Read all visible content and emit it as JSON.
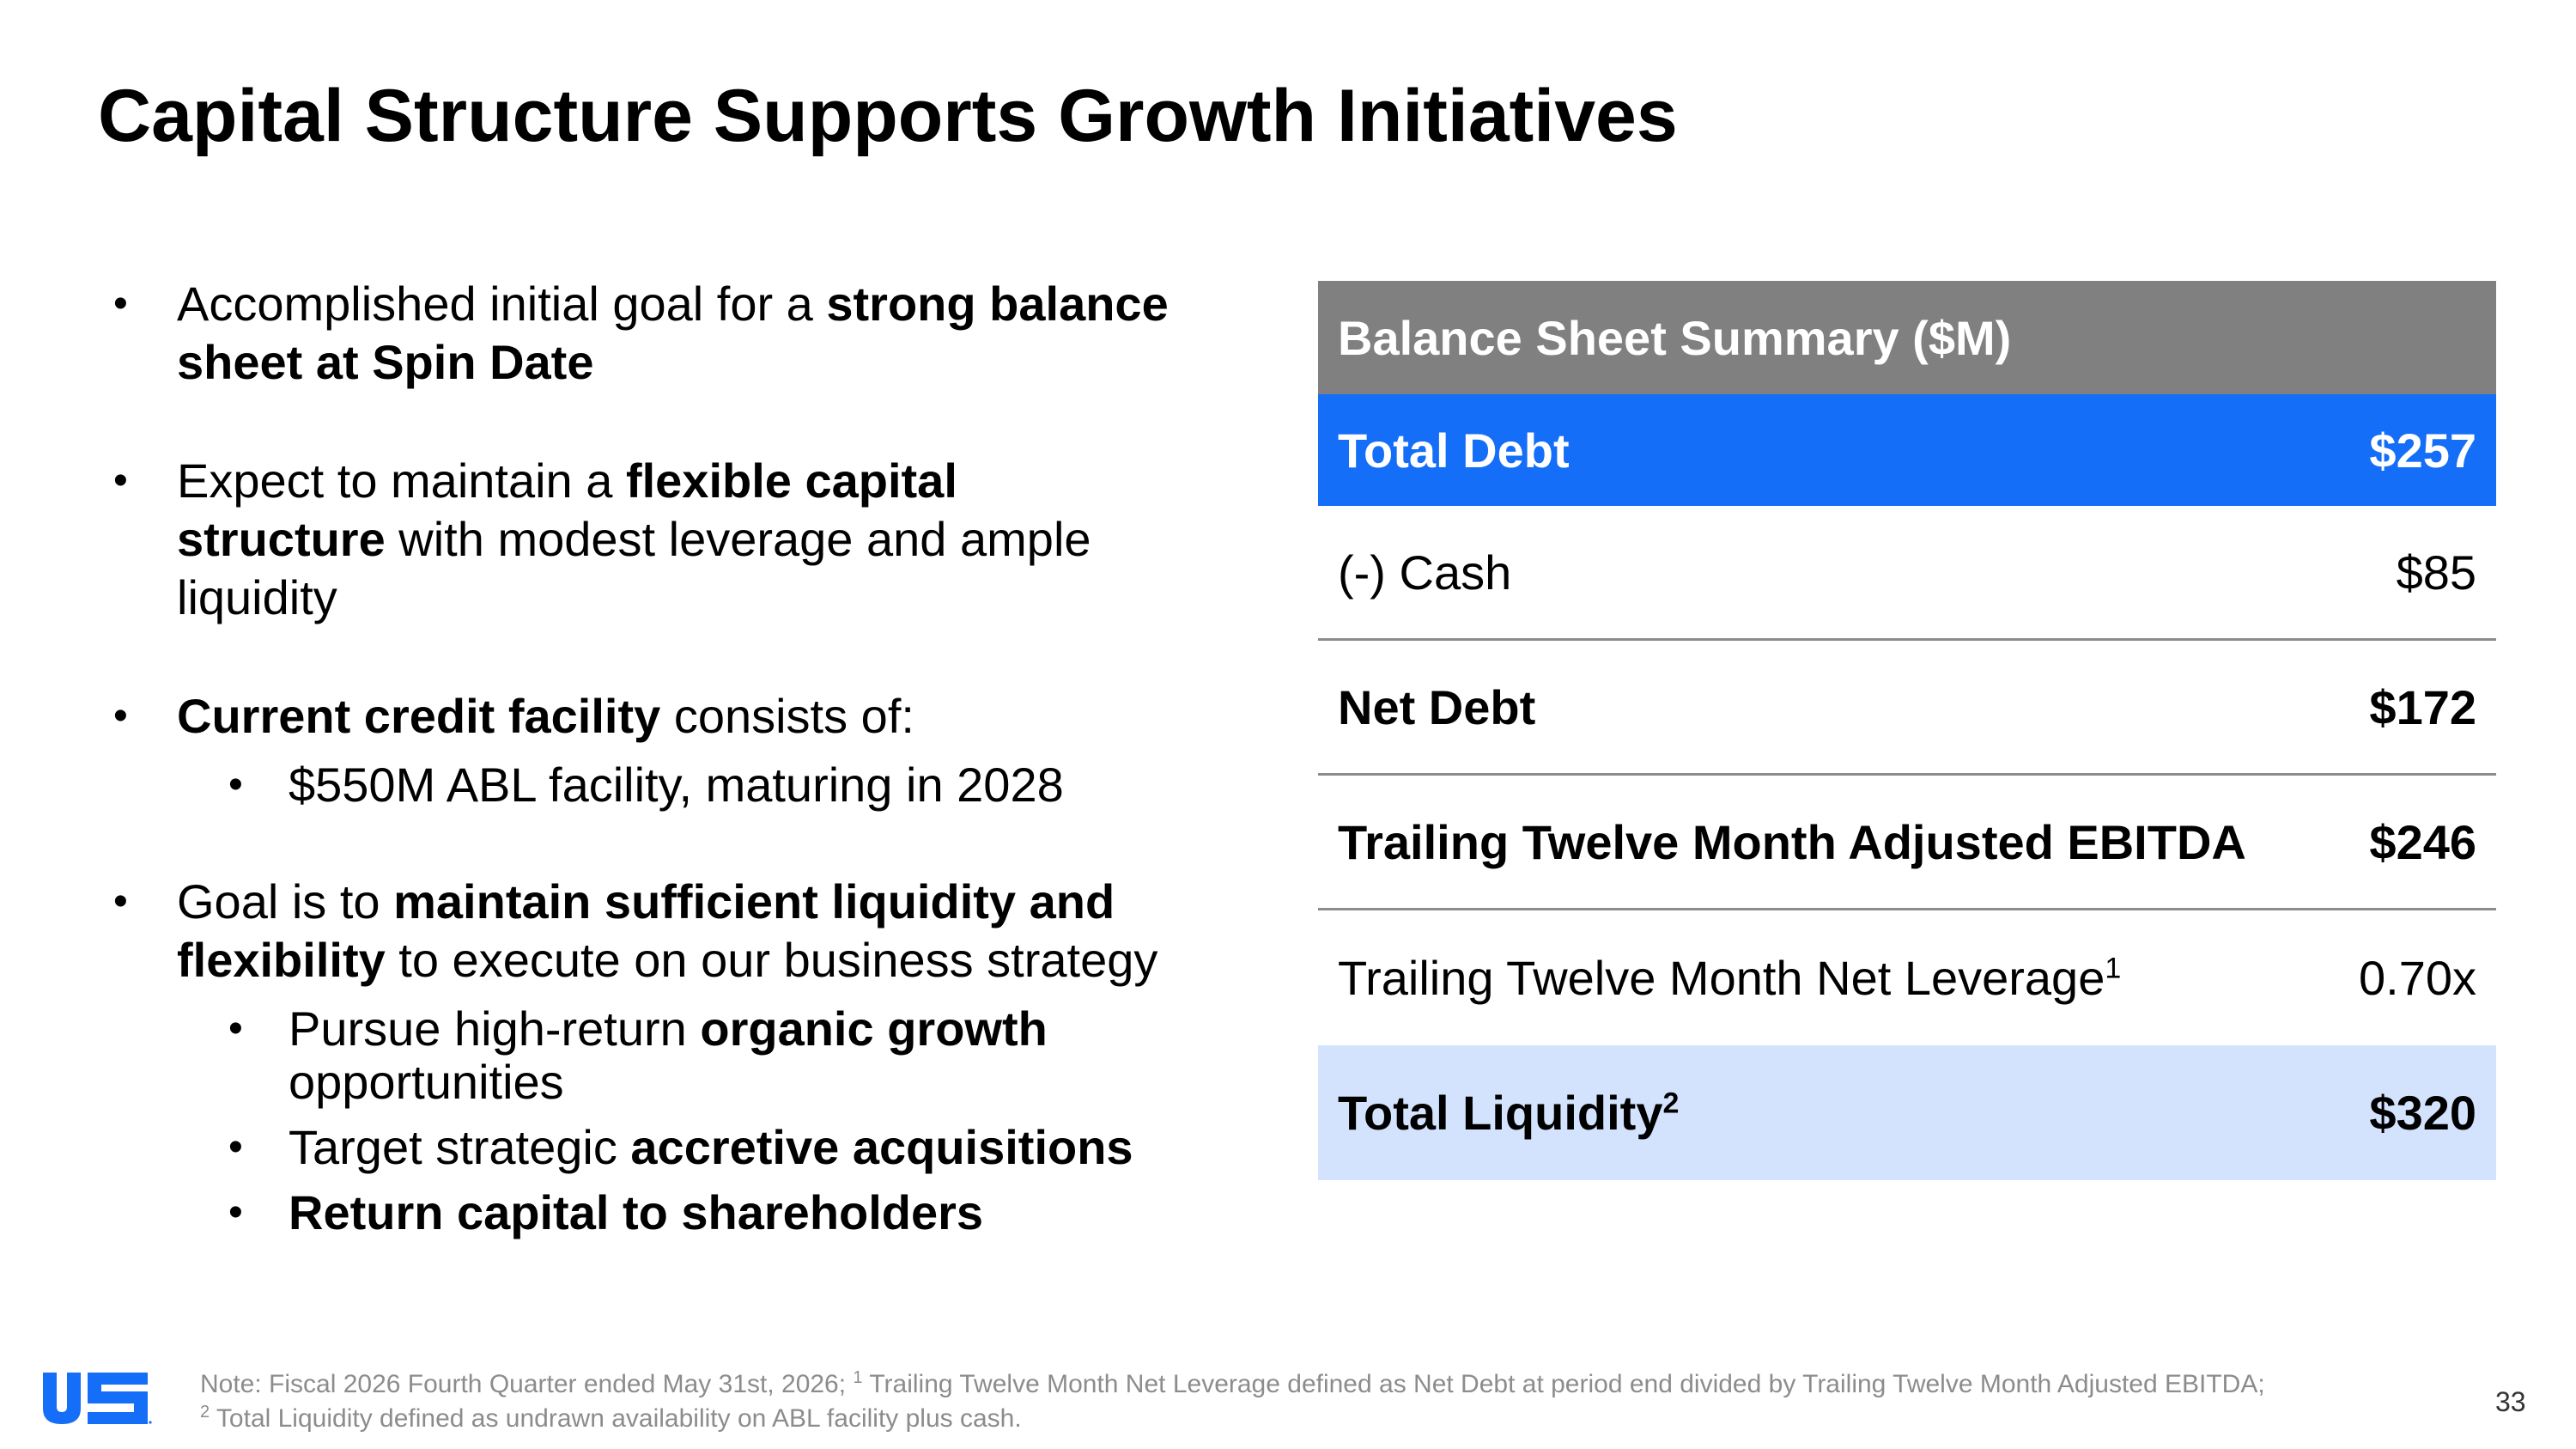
{
  "title": "Capital Structure Supports Growth Initiatives",
  "bullets": {
    "b1": {
      "t1": "Accomplished initial goal for a ",
      "bold1": "strong balance",
      "bold2": "sheet at Spin Date"
    },
    "b2": {
      "t1": "Expect to maintain a ",
      "bold1": "flexible capital",
      "bold2": "structure",
      "t2": " with modest leverage and ample",
      "t3": "liquidity"
    },
    "b3": {
      "bold1": "Current credit facility",
      "t1": " consists of:",
      "sub1": "$550M ABL facility, maturing in 2028"
    },
    "b4": {
      "t1": "Goal is to ",
      "bold1": "maintain sufficient liquidity and",
      "bold2": "flexibility",
      "t2": " to execute on our business strategy",
      "sub1_t1": "Pursue high-return ",
      "sub1_bold": "organic growth",
      "sub1_t2": "opportunities",
      "sub2_t1": "Target strategic ",
      "sub2_bold": "accretive acquisitions",
      "sub3_bold": "Return capital to shareholders"
    }
  },
  "table": {
    "header": "Balance Sheet Summary ($M)",
    "rows": [
      {
        "label": "Total Debt",
        "value": "$257"
      },
      {
        "label": "(-) Cash",
        "value": "$85"
      },
      {
        "label": "Net Debt",
        "value": "$172"
      },
      {
        "label": "Trailing Twelve Month Adjusted EBITDA",
        "value": "$246"
      },
      {
        "label": "Trailing Twelve Month Net Leverage",
        "sup": "1",
        "value": "0.70x"
      },
      {
        "label": "Total Liquidity",
        "sup": "2",
        "value": "$320"
      }
    ]
  },
  "footnote": {
    "line1_a": "Note: Fiscal 2026 Fourth Quarter ended May 31st, 2026; ",
    "sup1": "1",
    "line1_b": " Trailing Twelve Month Net Leverage defined as Net Debt at period end divided by Trailing Twelve Month Adjusted EBITDA;",
    "sup2": "2",
    "line2": " Total Liquidity defined as undrawn availability on ABL facility plus cash."
  },
  "logo_text": "US",
  "page_number": "33",
  "colors": {
    "header_gray": "#808080",
    "debt_blue": "#156ef7",
    "liquidity_light_blue": "#d3e3fd"
  }
}
